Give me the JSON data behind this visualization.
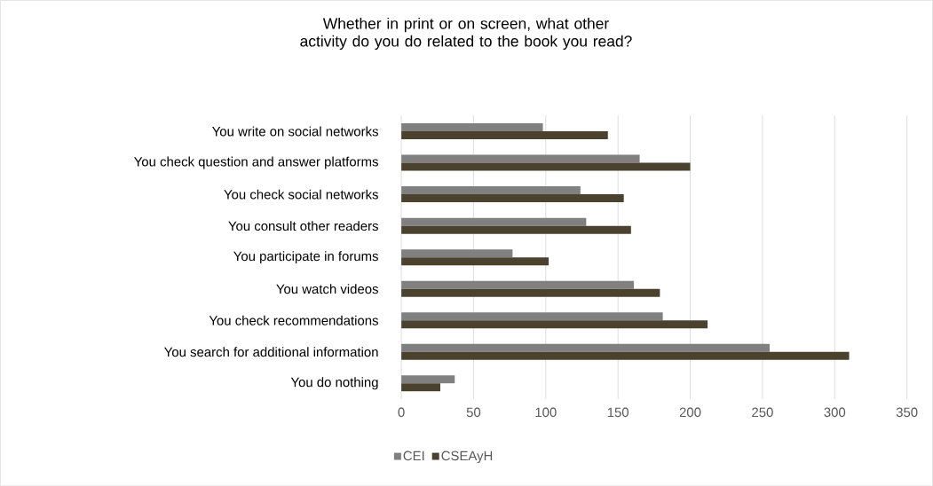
{
  "chart_data": {
    "type": "bar",
    "orientation": "horizontal",
    "title": "Whether in print or on screen, what other activity do you do related to the book you read?",
    "categories": [
      "You write on social networks",
      "You check question and answer platforms",
      "You check social networks",
      "You consult other readers",
      "You participate in forums",
      "You watch videos",
      "You check recommendations",
      "You search for additional information",
      "You do nothing"
    ],
    "series": [
      {
        "name": "CEI",
        "color": "#808080",
        "values": [
          98,
          165,
          124,
          128,
          77,
          161,
          181,
          255,
          37
        ]
      },
      {
        "name": "CSEAyH",
        "color": "#4a422e",
        "values": [
          143,
          200,
          154,
          159,
          102,
          179,
          212,
          310,
          27
        ]
      }
    ],
    "xlim": [
      0,
      350
    ],
    "xticks": [
      0,
      50,
      100,
      150,
      200,
      250,
      300,
      350
    ],
    "grid": "x",
    "legend": "bottom"
  }
}
